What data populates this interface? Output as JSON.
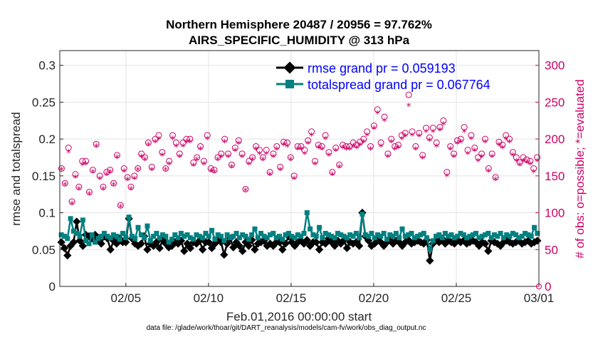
{
  "chart_data": {
    "type": "line",
    "title_line1": "Northern Hemisphere 20487 / 20956 = 97.762%",
    "title_line2": "AIRS_SPECIFIC_HUMIDITY @ 313 hPa",
    "xlabel": "Feb.01,2016 00:00:00 start",
    "ylabel_left": "rmse and totalspread",
    "ylabel_right": "# of obs: o=possible; *=evaluated",
    "footnote": "data file: /glade/work/thoar/git/DART_reanalysis/models/cam-fv/work/obs_diag_output.nc",
    "x_range_days": [
      1,
      30
    ],
    "x_ticks": [
      {
        "label": "02/05",
        "day": 5
      },
      {
        "label": "02/10",
        "day": 10
      },
      {
        "label": "02/15",
        "day": 15
      },
      {
        "label": "02/20",
        "day": 20
      },
      {
        "label": "02/25",
        "day": 25
      },
      {
        "label": "03/01",
        "day": 30
      }
    ],
    "ylim_left": [
      0,
      0.32
    ],
    "ylim_right": [
      0,
      320
    ],
    "left_ticks": [
      "0",
      "0.05",
      "0.1",
      "0.15",
      "0.2",
      "0.25",
      "0.3"
    ],
    "right_ticks": [
      "0",
      "50",
      "100",
      "150",
      "200",
      "250",
      "300"
    ],
    "grid": true,
    "legend_position": "top",
    "colors": {
      "rmse": "#000000",
      "spread": "#008080",
      "obs": "#cc0066",
      "legend_text": "#0000ff"
    },
    "series": [
      {
        "name": "rmse grand pr = 0.059193",
        "key": "rmse",
        "values": [
          0.06,
          0.052,
          0.042,
          0.055,
          0.06,
          0.088,
          0.062,
          0.055,
          0.07,
          0.068,
          0.065,
          0.07,
          0.063,
          0.058,
          0.068,
          0.065,
          0.05,
          0.062,
          0.058,
          0.065,
          0.06,
          0.06,
          0.092,
          0.065,
          0.058,
          0.055,
          0.058,
          0.068,
          0.05,
          0.058,
          0.055,
          0.06,
          0.052,
          0.063,
          0.058,
          0.053,
          0.055,
          0.06,
          0.058,
          0.062,
          0.048,
          0.058,
          0.052,
          0.06,
          0.058,
          0.062,
          0.05,
          0.06,
          0.06,
          0.052,
          0.058,
          0.063,
          0.06,
          0.043,
          0.058,
          0.065,
          0.053,
          0.06,
          0.055,
          0.048,
          0.06,
          0.055,
          0.063,
          0.05,
          0.058,
          0.06,
          0.062,
          0.055,
          0.058,
          0.055,
          0.06,
          0.06,
          0.05,
          0.058,
          0.068,
          0.06,
          0.055,
          0.06,
          0.062,
          0.058,
          0.063,
          0.055,
          0.06,
          0.06,
          0.05,
          0.06,
          0.058,
          0.065,
          0.06,
          0.055,
          0.062,
          0.058,
          0.063,
          0.052,
          0.06,
          0.058,
          0.06,
          0.055,
          0.1,
          0.068,
          0.062,
          0.055,
          0.058,
          0.062,
          0.06,
          0.055,
          0.06,
          0.063,
          0.058,
          0.062,
          0.06,
          0.055,
          0.06,
          0.063,
          0.058,
          0.06,
          0.062,
          0.06,
          0.058,
          0.063,
          0.035,
          0.058,
          0.062,
          0.06,
          0.065,
          0.058,
          0.062,
          0.06,
          0.058,
          0.063,
          0.06,
          0.062,
          0.058,
          0.06,
          0.062,
          0.06,
          0.055,
          0.06,
          0.058,
          0.048,
          0.062,
          0.06,
          0.058,
          0.055,
          0.06,
          0.062,
          0.06,
          0.058,
          0.06,
          0.062,
          0.058,
          0.06,
          0.062,
          0.058,
          0.06,
          0.062
        ]
      },
      {
        "name": "totalspread grand pr = 0.067764",
        "key": "spread",
        "values": [
          0.07,
          0.068,
          0.065,
          0.092,
          0.075,
          0.072,
          0.068,
          0.09,
          0.062,
          0.058,
          0.07,
          0.06,
          0.065,
          0.068,
          0.072,
          0.068,
          0.066,
          0.07,
          0.068,
          0.064,
          0.072,
          0.066,
          0.094,
          0.068,
          0.065,
          0.08,
          0.07,
          0.066,
          0.082,
          0.062,
          0.068,
          0.072,
          0.066,
          0.07,
          0.068,
          0.06,
          0.064,
          0.07,
          0.066,
          0.072,
          0.068,
          0.07,
          0.066,
          0.064,
          0.07,
          0.068,
          0.066,
          0.072,
          0.068,
          0.076,
          0.064,
          0.07,
          0.068,
          0.062,
          0.07,
          0.066,
          0.068,
          0.072,
          0.066,
          0.07,
          0.068,
          0.064,
          0.07,
          0.078,
          0.066,
          0.072,
          0.068,
          0.066,
          0.07,
          0.072,
          0.066,
          0.068,
          0.064,
          0.07,
          0.072,
          0.068,
          0.066,
          0.07,
          0.068,
          0.072,
          0.1,
          0.078,
          0.07,
          0.068,
          0.08,
          0.066,
          0.072,
          0.07,
          0.068,
          0.066,
          0.072,
          0.07,
          0.068,
          0.066,
          0.07,
          0.068,
          0.072,
          0.066,
          0.098,
          0.07,
          0.068,
          0.072,
          0.066,
          0.07,
          0.068,
          0.072,
          0.064,
          0.07,
          0.068,
          0.072,
          0.066,
          0.078,
          0.068,
          0.07,
          0.072,
          0.066,
          0.068,
          0.07,
          0.072,
          0.066,
          0.05,
          0.062,
          0.068,
          0.07,
          0.066,
          0.072,
          0.068,
          0.07,
          0.066,
          0.068,
          0.072,
          0.07,
          0.066,
          0.068,
          0.07,
          0.072,
          0.066,
          0.068,
          0.07,
          0.072,
          0.066,
          0.07,
          0.068,
          0.072,
          0.066,
          0.07,
          0.068,
          0.072,
          0.07,
          0.066,
          0.068,
          0.072,
          0.07,
          0.068,
          0.08,
          0.072
        ]
      },
      {
        "name": "possible",
        "key": "possible",
        "values": [
          160,
          140,
          188,
          115,
          152,
          135,
          170,
          170,
          128,
          158,
          193,
          150,
          135,
          155,
          158,
          140,
          178,
          110,
          160,
          148,
          135,
          150,
          160,
          180,
          175,
          195,
          162,
          200,
          205,
          182,
          160,
          170,
          205,
          195,
          180,
          195,
          200,
          200,
          168,
          175,
          190,
          170,
          205,
          160,
          158,
          175,
          180,
          200,
          180,
          165,
          188,
          198,
          180,
          132,
          170,
          175,
          190,
          185,
          175,
          185,
          155,
          180,
          190,
          162,
          196,
          195,
          175,
          150,
          190,
          190,
          185,
          198,
          210,
          170,
          192,
          190,
          205,
          182,
          155,
          188,
          165,
          192,
          190,
          190,
          195,
          192,
          196,
          200,
          210,
          190,
          218,
          240,
          195,
          230,
          180,
          200,
          190,
          192,
          205,
          208,
          260,
          210,
          190,
          208,
          178,
          215,
          202,
          215,
          195,
          216,
          225,
          155,
          190,
          180,
          198,
          200,
          216,
          185,
          205,
          188,
          175,
          180,
          200,
          160,
          180,
          148,
          196,
          192,
          205,
          200,
          182,
          175,
          168,
          175,
          172,
          170,
          160,
          175
        ]
      },
      {
        "name": "evaluated",
        "key": "evaluated",
        "values": [
          158,
          138,
          182,
          112,
          148,
          132,
          165,
          166,
          125,
          155,
          190,
          146,
          132,
          152,
          155,
          138,
          175,
          108,
          156,
          145,
          132,
          146,
          158,
          176,
          172,
          192,
          158,
          196,
          200,
          178,
          158,
          166,
          200,
          190,
          176,
          190,
          196,
          196,
          164,
          172,
          186,
          166,
          200,
          156,
          155,
          172,
          176,
          196,
          176,
          162,
          184,
          194,
          176,
          130,
          166,
          172,
          186,
          180,
          172,
          180,
          152,
          176,
          186,
          158,
          192,
          190,
          172,
          146,
          186,
          186,
          180,
          194,
          205,
          166,
          188,
          186,
          200,
          178,
          152,
          184,
          162,
          188,
          186,
          186,
          190,
          188,
          192,
          196,
          205,
          186,
          214,
          235,
          190,
          225,
          176,
          196,
          186,
          188,
          200,
          204,
          245,
          205,
          186,
          204,
          174,
          210,
          198,
          210,
          190,
          212,
          220,
          150,
          186,
          176,
          194,
          196,
          210,
          180,
          200,
          184,
          170,
          176,
          196,
          156,
          176,
          145,
          192,
          188,
          200,
          196,
          178,
          170,
          165,
          170,
          168,
          166,
          155,
          170
        ]
      }
    ]
  }
}
